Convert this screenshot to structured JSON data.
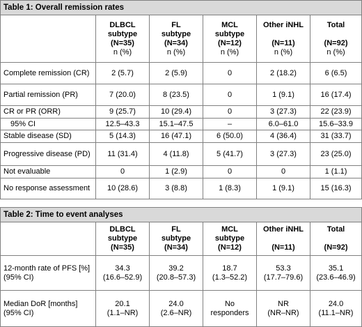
{
  "table1": {
    "title": "Table 1: Overall remission rates",
    "headers": [
      {
        "line1": "DLBCL",
        "line2": "subtype",
        "n": "(N=35)",
        "pct": "n (%)"
      },
      {
        "line1": "FL",
        "line2": "subtype",
        "n": "(N=34)",
        "pct": "n (%)"
      },
      {
        "line1": "MCL",
        "line2": "subtype",
        "n": "(N=12)",
        "pct": "n (%)"
      },
      {
        "line1": "Other iNHL",
        "line2": "",
        "n": "(N=11)",
        "pct": "n (%)"
      },
      {
        "line1": "Total",
        "line2": "",
        "n": "(N=92)",
        "pct": "n (%)"
      }
    ],
    "rows": [
      {
        "label": "Complete remission (CR)",
        "values": [
          "2 (5.7)",
          "2 (5.9)",
          "0",
          "2 (18.2)",
          "6 (6.5)"
        ]
      },
      {
        "label": "Partial remission (PR)",
        "values": [
          "7 (20.0)",
          "8 (23.5)",
          "0",
          "1 (9.1)",
          "16 (17.4)"
        ]
      },
      {
        "label": "CR or PR (ORR)",
        "values": [
          "9 (25.7)",
          "10 (29.4)",
          "0",
          "3 (27.3)",
          "22 (23.9)"
        ]
      },
      {
        "label": "95% CI",
        "values": [
          "12.5–43.3",
          "15.1–47.5",
          "–",
          "6.0–61.0",
          "15.6–33.9"
        ]
      },
      {
        "label": "Stable disease (SD)",
        "values": [
          "5 (14.3)",
          "16 (47.1)",
          "6 (50.0)",
          "4 (36.4)",
          "31 (33.7)"
        ]
      },
      {
        "label": "Progressive disease (PD)",
        "values": [
          "11 (31.4)",
          "4 (11.8)",
          "5 (41.7)",
          "3 (27.3)",
          "23 (25.0)"
        ]
      },
      {
        "label": "Not evaluable",
        "values": [
          "0",
          "1 (2.9)",
          "0",
          "0",
          "1 (1.1)"
        ]
      },
      {
        "label": "No response assessment",
        "values": [
          "10 (28.6)",
          "3 (8.8)",
          "1 (8.3)",
          "1 (9.1)",
          "15 (16.3)"
        ]
      }
    ]
  },
  "table2": {
    "title": "Table 2: Time to event analyses",
    "headers": [
      {
        "line1": "DLBCL",
        "line2": "subtype",
        "n": "(N=35)"
      },
      {
        "line1": "FL",
        "line2": "subtype",
        "n": "(N=34)"
      },
      {
        "line1": "MCL",
        "line2": "subtype",
        "n": "(N=12)"
      },
      {
        "line1": "Other iNHL",
        "line2": "",
        "n": "(N=11)"
      },
      {
        "line1": "Total",
        "line2": "",
        "n": "(N=92)"
      }
    ],
    "rows": [
      {
        "label1": "12-month rate of PFS [%]",
        "label2": "(95% CI)",
        "values": [
          [
            "34.3",
            "(16.6–52.9)"
          ],
          [
            "39.2",
            "(20.8–57.3)"
          ],
          [
            "18.7",
            "(1.3–52.2)"
          ],
          [
            "53.3",
            "(17.7–79.6)"
          ],
          [
            "35.1",
            "(23.6–46.9)"
          ]
        ]
      },
      {
        "label1": "Median DoR [months]",
        "label2": "(95% CI)",
        "values": [
          [
            "20.1",
            "(1.1–NR)"
          ],
          [
            "24.0",
            "(2.6–NR)"
          ],
          [
            "No",
            "responders"
          ],
          [
            "NR",
            "(NR–NR)"
          ],
          [
            "24.0",
            "(11.1–NR)"
          ]
        ]
      }
    ]
  }
}
